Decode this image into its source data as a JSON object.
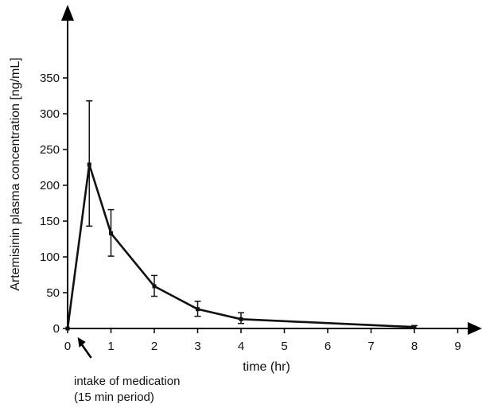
{
  "colors": {
    "line": "#111111",
    "axis": "#000000",
    "background": "#ffffff"
  },
  "chart_data": {
    "type": "line",
    "title": "",
    "xlabel": "time (hr)",
    "ylabel": "Artemisinin plasma  concentration [ng/mL]",
    "xlim": [
      0,
      9
    ],
    "ylim": [
      0,
      350
    ],
    "xticks": [
      0,
      1,
      2,
      3,
      4,
      5,
      6,
      7,
      8,
      9
    ],
    "yticks": [
      0,
      50,
      100,
      150,
      200,
      250,
      300,
      350
    ],
    "grid": false,
    "series": [
      {
        "x": [
          0,
          0.5,
          1,
          2,
          3,
          4,
          8
        ],
        "y": [
          0,
          229,
          133,
          59,
          27,
          13,
          2
        ],
        "err_low": [
          0,
          143,
          101,
          45,
          17,
          7,
          0
        ],
        "err_high": [
          0,
          318,
          166,
          74,
          38,
          22,
          4
        ]
      }
    ],
    "annotations": [
      {
        "line1": "intake of medication",
        "line2": "(15 min period)",
        "points_to_x": 0.25
      }
    ]
  }
}
